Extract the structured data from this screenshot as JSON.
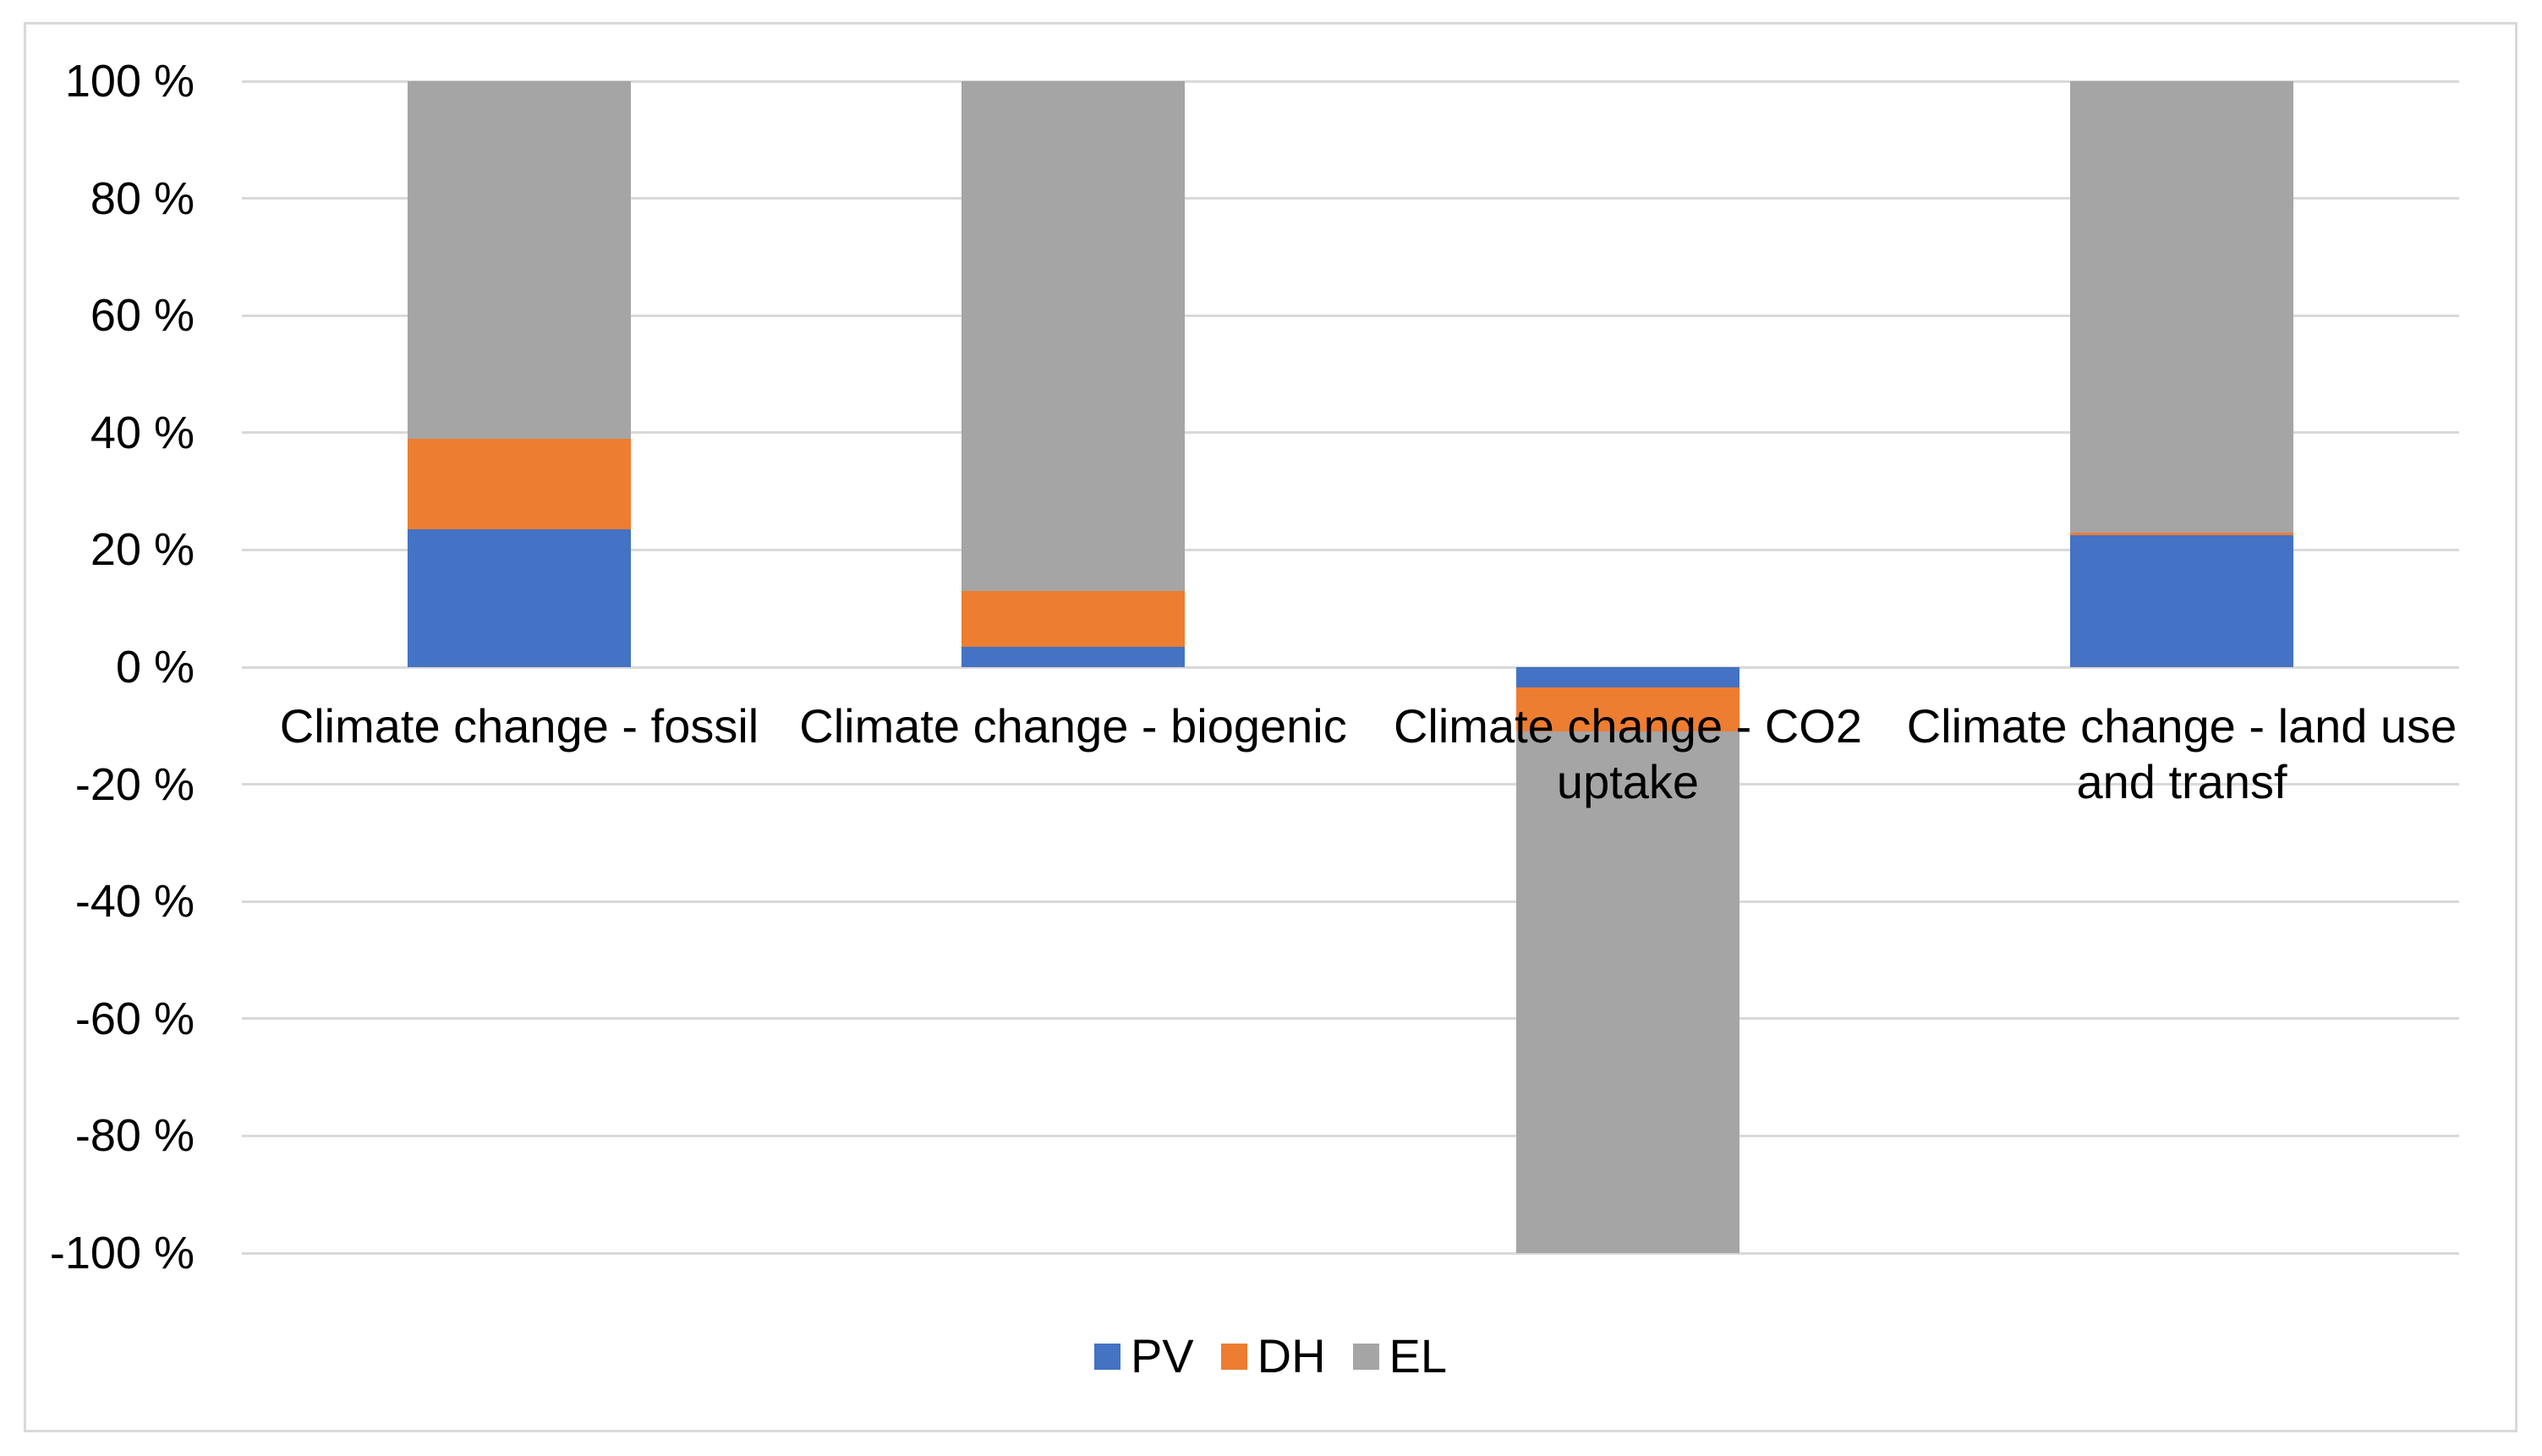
{
  "chart_data": {
    "type": "bar",
    "subtype": "stacked-column",
    "title": "",
    "xlabel": "",
    "ylabel": "",
    "categories": [
      "Climate change - fossil",
      "Climate change - biogenic",
      "Climate change - CO2 uptake",
      "Climate change - land use and transf"
    ],
    "category_label_lines": [
      [
        "Climate change - fossil"
      ],
      [
        "Climate change - biogenic"
      ],
      [
        "Climate change - CO2",
        "uptake"
      ],
      [
        "Climate change - land use",
        "and transf"
      ]
    ],
    "series": [
      {
        "name": "PV",
        "color": "#4472C4",
        "values": [
          23.5,
          3.5,
          -3.5,
          22.5
        ]
      },
      {
        "name": "DH",
        "color": "#ED7D31",
        "values": [
          15.5,
          9.5,
          -7.5,
          0.5
        ]
      },
      {
        "name": "EL",
        "color": "#A5A5A5",
        "values": [
          61.0,
          87.0,
          -89.0,
          77.0
        ]
      }
    ],
    "stack_totals": [
      100,
      100,
      -100,
      100
    ],
    "ylim": [
      -100,
      100
    ],
    "ytick_values": [
      100,
      80,
      60,
      40,
      20,
      0,
      -20,
      -40,
      -60,
      -80,
      -100
    ],
    "ytick_labels": [
      "100 %",
      "80 %",
      "60 %",
      "40 %",
      "20 %",
      "0 %",
      "-20 %",
      "-40 %",
      "-60 %",
      "-80 %",
      "-100 %"
    ],
    "grid": true,
    "legend_position": "bottom",
    "legend": [
      {
        "label": "PV",
        "color": "#4472C4"
      },
      {
        "label": "DH",
        "color": "#ED7D31"
      },
      {
        "label": "EL",
        "color": "#A5A5A5"
      }
    ],
    "colors": {
      "grid": "#D9D9D9",
      "frame_border": "#D9D9D9",
      "text": "#000000",
      "background": "#FFFFFF"
    }
  }
}
